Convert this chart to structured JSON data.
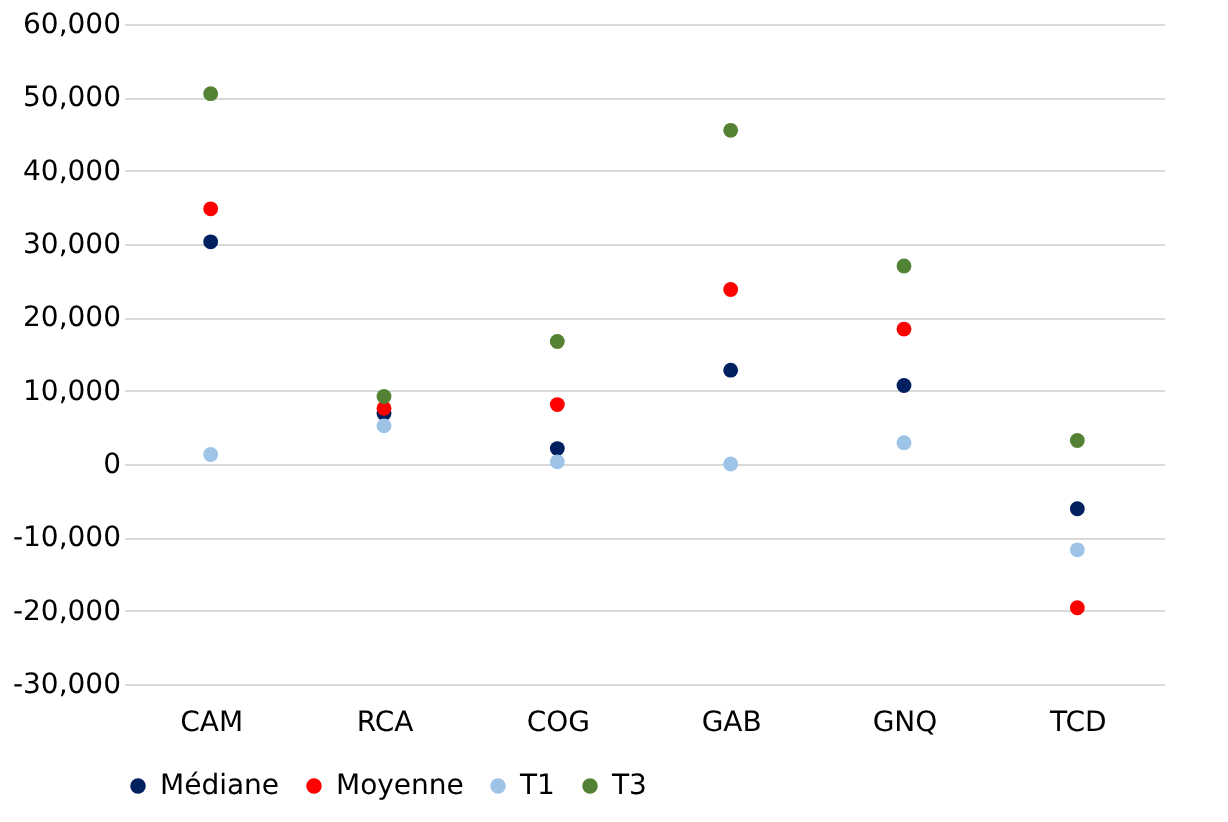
{
  "chart_data": {
    "type": "scatter",
    "categories": [
      "CAM",
      "RCA",
      "COG",
      "GAB",
      "GNQ",
      "TCD"
    ],
    "series": [
      {
        "name": "Médiane",
        "color": "#002060",
        "values": [
          30300,
          6900,
          2100,
          12800,
          10700,
          -6100
        ]
      },
      {
        "name": "Moyenne",
        "color": "#ff0000",
        "values": [
          34800,
          7600,
          8100,
          23800,
          18400,
          -19600
        ]
      },
      {
        "name": "T1",
        "color": "#9dc3e6",
        "values": [
          1300,
          5200,
          300,
          0,
          2900,
          -11700
        ]
      },
      {
        "name": "T3",
        "color": "#548235",
        "values": [
          50500,
          9200,
          16700,
          45500,
          27000,
          3200
        ]
      }
    ],
    "ylim": [
      -30000,
      60000
    ],
    "yticks": [
      {
        "value": -30000,
        "label": "-30,000"
      },
      {
        "value": -20000,
        "label": "-20,000"
      },
      {
        "value": -10000,
        "label": "-10,000"
      },
      0,
      {
        "value": 10000,
        "label": "10,000"
      },
      {
        "value": 20000,
        "label": "20,000"
      },
      {
        "value": 30000,
        "label": "30,000"
      },
      {
        "value": 40000,
        "label": "40,000"
      },
      {
        "value": 50000,
        "label": "50,000"
      },
      {
        "value": 60000,
        "label": "60,000"
      }
    ],
    "grid": "y",
    "legend": "bottom",
    "marker": "circle"
  }
}
